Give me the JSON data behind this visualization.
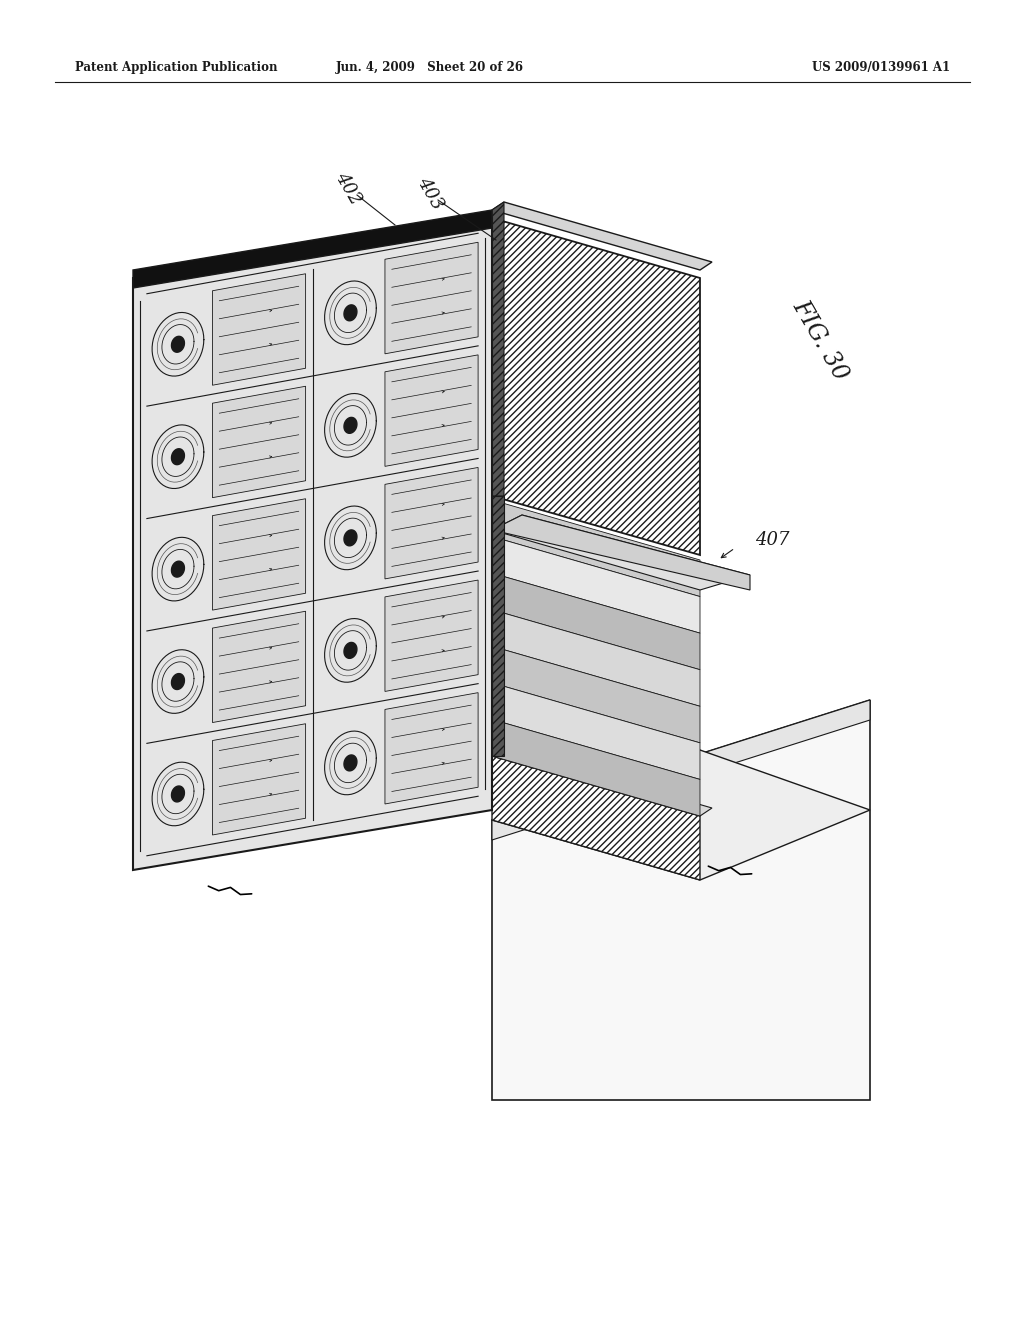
{
  "header_left": "Patent Application Publication",
  "header_mid": "Jun. 4, 2009   Sheet 20 of 26",
  "header_right": "US 2009/0139961 A1",
  "fig_label": "FIG. 30",
  "label_402": "402",
  "label_403": "403",
  "label_407": "407",
  "bg_color": "#ffffff",
  "line_color": "#1a1a1a",
  "chip_face_color": "#e8e8e8",
  "chip_top_color": "#111111",
  "hatch_block_color": "#ffffff",
  "base_color": "#f0f0f0",
  "gray_layer_color": "#cccccc"
}
